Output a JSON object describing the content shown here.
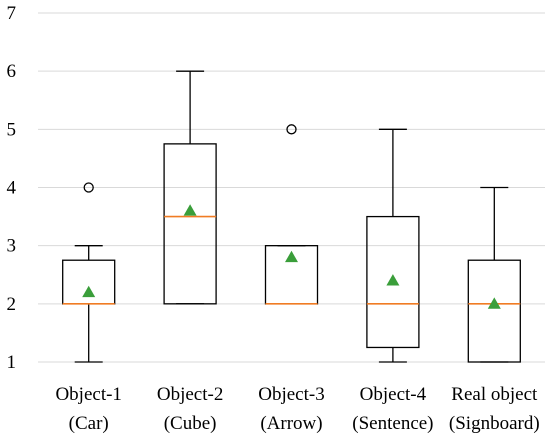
{
  "chart_data": {
    "type": "box",
    "title": "",
    "xlabel": "",
    "ylabel": "",
    "ylim": [
      1,
      7
    ],
    "yticks": [
      1,
      2,
      3,
      4,
      5,
      6,
      7
    ],
    "grid": "horizontal",
    "colors": {
      "box": "#000000",
      "median": "#f07c24",
      "mean": "#3a9e3a",
      "grid": "#d9d9d9"
    },
    "categories": [
      {
        "line1": "Object-1",
        "line2": "(Car)"
      },
      {
        "line1": "Object-2",
        "line2": "(Cube)"
      },
      {
        "line1": "Object-3",
        "line2": "(Arrow)"
      },
      {
        "line1": "Object-4",
        "line2": "(Sentence)"
      },
      {
        "line1": "Real object",
        "line2": "(Signboard)"
      }
    ],
    "boxes": [
      {
        "whisker_low": 1,
        "q1": 2,
        "median": 2,
        "q3": 2.75,
        "whisker_high": 3,
        "mean": 2.2,
        "outliers": [
          4
        ]
      },
      {
        "whisker_low": 2,
        "q1": 2,
        "median": 3.5,
        "q3": 4.75,
        "whisker_high": 6,
        "mean": 3.6,
        "outliers": []
      },
      {
        "whisker_low": 2,
        "q1": 2,
        "median": 2,
        "q3": 3,
        "whisker_high": 3,
        "mean": 2.8,
        "outliers": [
          5
        ]
      },
      {
        "whisker_low": 1,
        "q1": 1.25,
        "median": 2,
        "q3": 3.5,
        "whisker_high": 5,
        "mean": 2.4,
        "outliers": []
      },
      {
        "whisker_low": 1,
        "q1": 1,
        "median": 2,
        "q3": 2.75,
        "whisker_high": 4,
        "mean": 2,
        "outliers": []
      }
    ]
  }
}
